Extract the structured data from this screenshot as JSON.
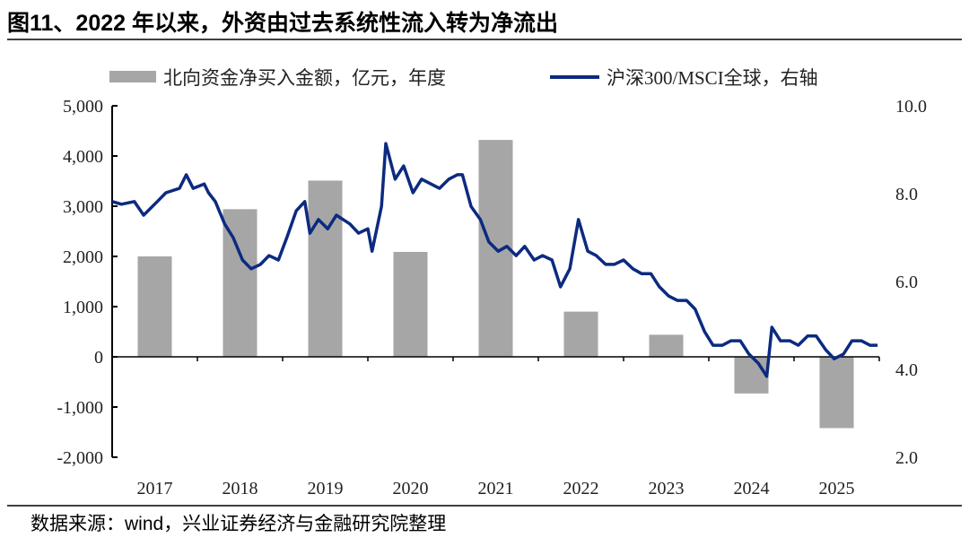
{
  "title": "图11、2022 年以来，外资由过去系统性流入转为净流出",
  "source": "数据来源：wind，兴业证券经济与金融研究院整理",
  "chart_data": {
    "type": "bar+line",
    "title": "图11、2022 年以来，外资由过去系统性流入转为净流出",
    "categories": [
      "2017",
      "2018",
      "2019",
      "2020",
      "2021",
      "2022",
      "2023",
      "2024",
      "2025"
    ],
    "legend_placement": "top",
    "grid": false,
    "left_axis": {
      "ylim": [
        -2000,
        5000
      ],
      "ticks": [
        "5,000",
        "4,000",
        "3,000",
        "2,000",
        "1,000",
        "0",
        "-1,000",
        "-2,000"
      ]
    },
    "right_axis": {
      "ylim": [
        2.0,
        10.0
      ],
      "ticks": [
        "10.0",
        "8.0",
        "6.0",
        "4.0",
        "2.0"
      ]
    },
    "series": [
      {
        "name": "北向资金净买入金额，亿元，年度",
        "type": "bar",
        "axis": "left",
        "color": "#a6a6a6",
        "values": [
          2000,
          2940,
          3510,
          2090,
          4320,
          900,
          440,
          -730,
          -1420
        ]
      },
      {
        "name": "沪深300/MSCI全球，右轴",
        "type": "line",
        "axis": "right",
        "color": "#0c2a80",
        "points": [
          [
            2017.0,
            7.82
          ],
          [
            2017.11,
            7.76
          ],
          [
            2017.26,
            7.82
          ],
          [
            2017.37,
            7.51
          ],
          [
            2017.53,
            7.82
          ],
          [
            2017.63,
            8.02
          ],
          [
            2017.79,
            8.12
          ],
          [
            2017.87,
            8.43
          ],
          [
            2017.95,
            8.12
          ],
          [
            2018.08,
            8.22
          ],
          [
            2018.13,
            8.02
          ],
          [
            2018.21,
            7.82
          ],
          [
            2018.32,
            7.31
          ],
          [
            2018.42,
            7.0
          ],
          [
            2018.53,
            6.49
          ],
          [
            2018.63,
            6.29
          ],
          [
            2018.74,
            6.39
          ],
          [
            2018.84,
            6.59
          ],
          [
            2018.95,
            6.49
          ],
          [
            2019.05,
            7.0
          ],
          [
            2019.16,
            7.61
          ],
          [
            2019.26,
            7.82
          ],
          [
            2019.32,
            7.1
          ],
          [
            2019.42,
            7.41
          ],
          [
            2019.53,
            7.2
          ],
          [
            2019.63,
            7.51
          ],
          [
            2019.79,
            7.31
          ],
          [
            2019.89,
            7.1
          ],
          [
            2020.0,
            7.2
          ],
          [
            2020.05,
            6.69
          ],
          [
            2020.16,
            7.71
          ],
          [
            2020.21,
            9.14
          ],
          [
            2020.32,
            8.33
          ],
          [
            2020.42,
            8.63
          ],
          [
            2020.53,
            8.02
          ],
          [
            2020.63,
            8.33
          ],
          [
            2020.74,
            8.22
          ],
          [
            2020.84,
            8.12
          ],
          [
            2020.95,
            8.33
          ],
          [
            2021.05,
            8.43
          ],
          [
            2021.11,
            8.43
          ],
          [
            2021.21,
            7.71
          ],
          [
            2021.32,
            7.41
          ],
          [
            2021.42,
            6.9
          ],
          [
            2021.53,
            6.69
          ],
          [
            2021.63,
            6.8
          ],
          [
            2021.74,
            6.59
          ],
          [
            2021.84,
            6.8
          ],
          [
            2021.95,
            6.49
          ],
          [
            2022.05,
            6.59
          ],
          [
            2022.16,
            6.49
          ],
          [
            2022.26,
            5.88
          ],
          [
            2022.37,
            6.29
          ],
          [
            2022.47,
            7.41
          ],
          [
            2022.58,
            6.69
          ],
          [
            2022.68,
            6.59
          ],
          [
            2022.79,
            6.39
          ],
          [
            2022.89,
            6.39
          ],
          [
            2023.0,
            6.49
          ],
          [
            2023.11,
            6.29
          ],
          [
            2023.21,
            6.18
          ],
          [
            2023.32,
            6.18
          ],
          [
            2023.42,
            5.88
          ],
          [
            2023.53,
            5.67
          ],
          [
            2023.63,
            5.57
          ],
          [
            2023.74,
            5.57
          ],
          [
            2023.84,
            5.37
          ],
          [
            2023.95,
            4.86
          ],
          [
            2024.05,
            4.55
          ],
          [
            2024.16,
            4.55
          ],
          [
            2024.26,
            4.65
          ],
          [
            2024.37,
            4.65
          ],
          [
            2024.47,
            4.35
          ],
          [
            2024.58,
            4.14
          ],
          [
            2024.68,
            3.84
          ],
          [
            2024.74,
            4.96
          ],
          [
            2024.84,
            4.65
          ],
          [
            2024.95,
            4.65
          ],
          [
            2025.05,
            4.55
          ],
          [
            2025.16,
            4.76
          ],
          [
            2025.26,
            4.76
          ],
          [
            2025.37,
            4.45
          ],
          [
            2025.47,
            4.24
          ],
          [
            2025.58,
            4.35
          ],
          [
            2025.68,
            4.65
          ],
          [
            2025.79,
            4.65
          ],
          [
            2025.89,
            4.55
          ],
          [
            2025.98,
            4.55
          ]
        ]
      }
    ]
  }
}
